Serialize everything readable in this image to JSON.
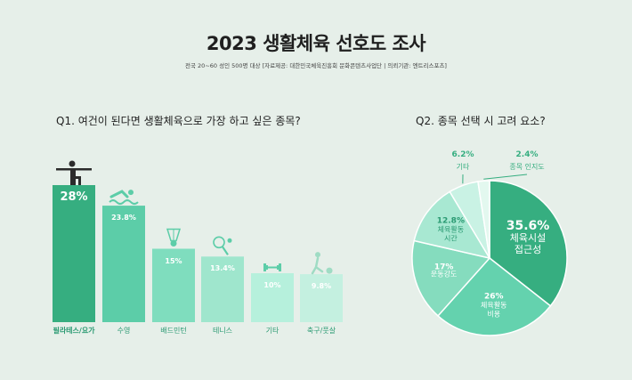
{
  "header": {
    "title": "2023 생활체육 선호도 조사",
    "subtitle": "전국 20~60 성인 500명 대상 [자료제공: 대한민국체육진흥회 문화콘텐츠사업단 | 의뢰기관: 엔트리스포츠]"
  },
  "q1_title": "Q1. 여건이 된다면 생활체육으로 가장 하고 싶은 종목?",
  "q2_title": "Q2. 종목 선택 시 고려 요소?",
  "chart_data": [
    {
      "type": "bar",
      "title": "Q1. 여건이 된다면 생활체육으로 가장 하고 싶은 종목?",
      "categories": [
        "필라테스/요가",
        "수영",
        "배드민턴",
        "테니스",
        "기타",
        "축구/풋살"
      ],
      "values": [
        28,
        23.8,
        15,
        13.4,
        10,
        9.8
      ],
      "value_labels": [
        "28%",
        "23.8%",
        "15%",
        "13.4%",
        "10%",
        "9.8%"
      ],
      "icons": [
        "yoga-icon",
        "swimmer-icon",
        "shuttlecock-icon",
        "tennis-icon",
        "dumbbell-icon",
        "soccer-icon"
      ],
      "colors": [
        "#36ae80",
        "#5ccda8",
        "#7fddbe",
        "#9fe6cd",
        "#b6f0dc",
        "#c4f0e0"
      ],
      "ylim": [
        0,
        30
      ]
    },
    {
      "type": "pie",
      "title": "Q2. 종목 선택 시 고려 요소?",
      "slices": [
        {
          "label": "체육시설 접근성",
          "value": 35.6,
          "value_label": "35.6%",
          "color": "#36ae80"
        },
        {
          "label": "체육활동 비용",
          "value": 26,
          "value_label": "26%",
          "color": "#64d2ae"
        },
        {
          "label": "운동강도",
          "value": 17,
          "value_label": "17%",
          "color": "#85dcbe"
        },
        {
          "label": "체육활동 시간",
          "value": 12.8,
          "value_label": "12.8%",
          "color": "#a8e8d2"
        },
        {
          "label": "기타",
          "value": 6.2,
          "value_label": "6.2%",
          "color": "#c9f2e4"
        },
        {
          "label": "종목 인지도",
          "value": 2.4,
          "value_label": "2.4%",
          "color": "#e3f8ef"
        }
      ]
    }
  ]
}
